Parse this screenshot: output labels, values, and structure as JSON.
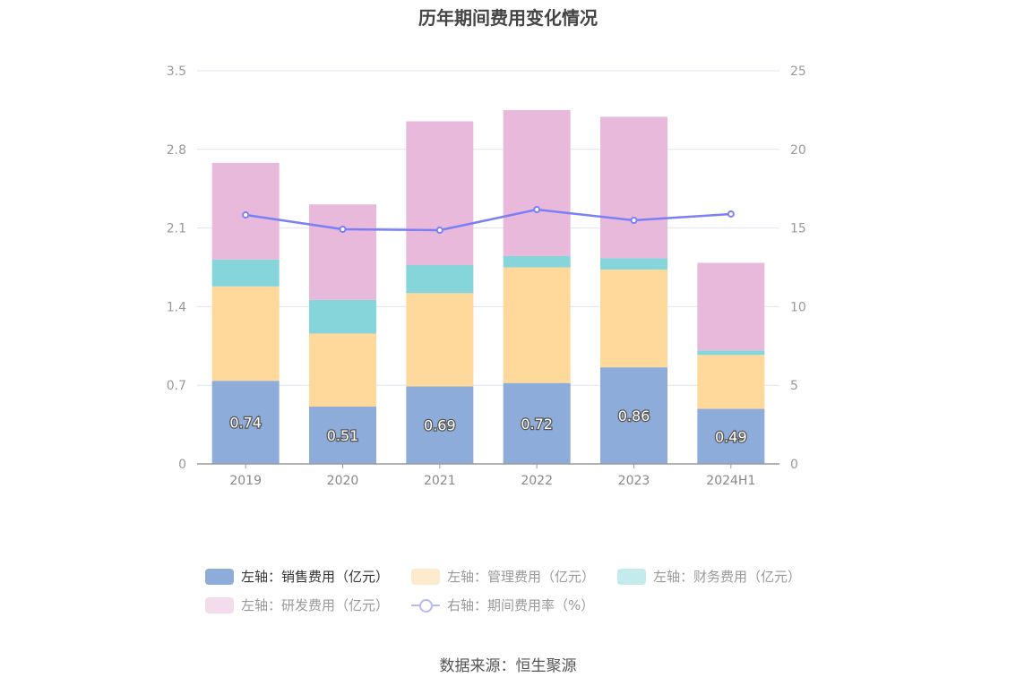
{
  "title": "历年期间费用变化情况",
  "source": "数据来源：恒生聚源",
  "chart_data": {
    "type": "bar",
    "stacked": true,
    "title": "历年期间费用变化情况",
    "categories": [
      "2019",
      "2020",
      "2021",
      "2022",
      "2023",
      "2024H1"
    ],
    "y_left": {
      "range": [
        0,
        3.5
      ],
      "ticks": [
        "0",
        "0.7",
        "1.4",
        "2.1",
        "2.8",
        "3.5"
      ]
    },
    "y_right": {
      "range": [
        0,
        25
      ],
      "ticks": [
        "0",
        "5",
        "10",
        "15",
        "20",
        "25"
      ]
    },
    "grid": true,
    "legend_placement": "bottom",
    "series": [
      {
        "name": "左轴：销售费用（亿元）",
        "axis": "left",
        "type": "bar",
        "color": "#8eacd9",
        "legend_color": "#8eacd9",
        "legend_text_color": "#333333",
        "values": [
          0.74,
          0.51,
          0.69,
          0.72,
          0.86,
          0.49
        ],
        "labels": [
          "0.74",
          "0.51",
          "0.69",
          "0.72",
          "0.86",
          "0.49"
        ]
      },
      {
        "name": "左轴：管理费用（亿元）",
        "axis": "left",
        "type": "bar",
        "color": "#fed99b",
        "legend_color": "#feebcd",
        "legend_text_color": "#999999",
        "values": [
          0.84,
          0.65,
          0.83,
          1.03,
          0.87,
          0.48
        ]
      },
      {
        "name": "左轴：财务费用（亿元）",
        "axis": "left",
        "type": "bar",
        "color": "#86d5da",
        "legend_color": "#c3eaec",
        "legend_text_color": "#999999",
        "values": [
          0.24,
          0.3,
          0.25,
          0.1,
          0.1,
          0.04
        ]
      },
      {
        "name": "左轴：研发费用（亿元）",
        "axis": "left",
        "type": "bar",
        "color": "#e8b9da",
        "legend_color": "#f3dcec",
        "legend_text_color": "#999999",
        "values": [
          0.86,
          0.85,
          1.28,
          1.3,
          1.26,
          0.78
        ]
      },
      {
        "name": "右轴：期间费用率（%）",
        "axis": "right",
        "type": "line",
        "color": "#7b7ff5",
        "legend_color": "#b6b8fa",
        "legend_text_color": "#999999",
        "values": [
          15.83,
          14.92,
          14.86,
          16.17,
          15.49,
          15.89
        ]
      }
    ]
  }
}
